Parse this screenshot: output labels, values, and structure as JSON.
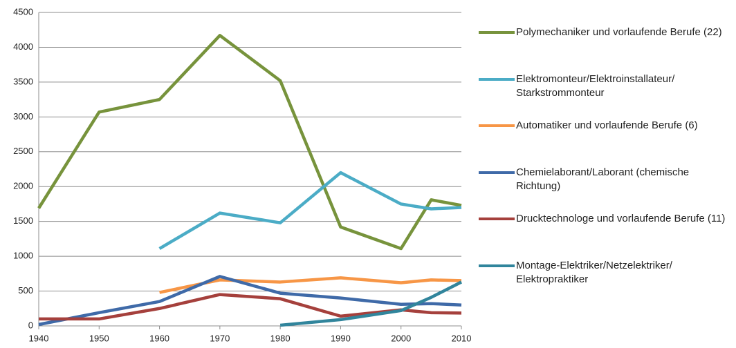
{
  "chart_data": {
    "type": "line",
    "x": [
      1940,
      1950,
      1960,
      1970,
      1980,
      1990,
      2000,
      2005,
      2010
    ],
    "xlim": [
      1940,
      2010
    ],
    "xticks": [
      1940,
      1950,
      1960,
      1970,
      1980,
      1990,
      2000,
      2010
    ],
    "ylim": [
      0,
      4500
    ],
    "yticks": [
      0,
      500,
      1000,
      1500,
      2000,
      2500,
      3000,
      3500,
      4000,
      4500
    ],
    "grid": true,
    "legend": "right",
    "series": [
      {
        "name": "Polymechaniker und vorlaufende Berufe (22)",
        "color": "#77933c",
        "values": [
          1690,
          3070,
          3250,
          4170,
          3520,
          1420,
          1110,
          1810,
          1730
        ]
      },
      {
        "name": "Elektromonteur/Elektroinstallateur/ Starkstrommonteur",
        "color": "#4bacc6",
        "values": [
          null,
          null,
          1110,
          1620,
          1480,
          2200,
          1750,
          1680,
          1700
        ]
      },
      {
        "name": "Automatiker und vorlaufende Berufe (6)",
        "color": "#f79646",
        "values": [
          null,
          null,
          480,
          660,
          630,
          690,
          620,
          660,
          650
        ]
      },
      {
        "name": "Chemielaborant/Laborant (chemische Richtung)",
        "color": "#3f6aa8",
        "values": [
          20,
          190,
          350,
          710,
          470,
          400,
          310,
          320,
          300
        ]
      },
      {
        "name": "Drucktechnologe und vorlaufende Berufe (11)",
        "color": "#a5403c",
        "values": [
          100,
          100,
          250,
          450,
          390,
          140,
          230,
          190,
          185
        ]
      },
      {
        "name": "Montage-Elektriker/Netzelektriker/ Elektropraktiker",
        "color": "#31859c",
        "values": [
          null,
          null,
          null,
          null,
          10,
          90,
          220,
          410,
          630
        ]
      }
    ]
  }
}
